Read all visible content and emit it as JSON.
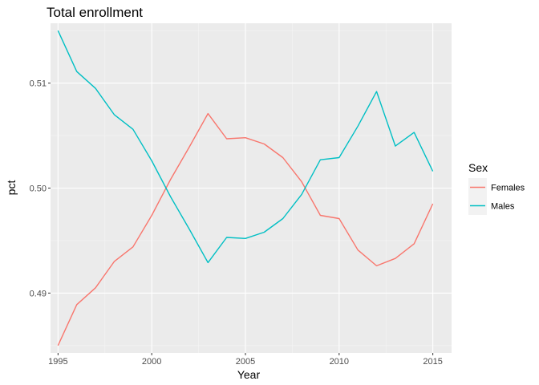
{
  "chart_data": {
    "type": "line",
    "title": "Total enrollment",
    "xlabel": "Year",
    "ylabel": "pct",
    "xlim": [
      1994.6,
      2016.0
    ],
    "ylim": [
      0.4843,
      0.5157
    ],
    "x_ticks": [
      1995,
      2000,
      2005,
      2010,
      2015
    ],
    "x_tick_labels": [
      "1995",
      "2000",
      "2005",
      "2010",
      "2015"
    ],
    "y_ticks": [
      0.49,
      0.5,
      0.51
    ],
    "y_tick_labels": [
      "0.49",
      "0.50",
      "0.51"
    ],
    "grid": true,
    "legend_position": "right",
    "legend_title": "Sex",
    "x": [
      1995,
      1996,
      1997,
      1998,
      1999,
      2000,
      2001,
      2002,
      2003,
      2004,
      2005,
      2006,
      2007,
      2008,
      2009,
      2010,
      2011,
      2012,
      2013,
      2014,
      2015
    ],
    "series": [
      {
        "name": "Females",
        "color": "#F8766D",
        "values": [
          0.485,
          0.4889,
          0.4905,
          0.493,
          0.4944,
          0.4974,
          0.5008,
          0.5039,
          0.5071,
          0.5047,
          0.5048,
          0.5042,
          0.5029,
          0.5006,
          0.4974,
          0.4971,
          0.4941,
          0.4926,
          0.4933,
          0.4947,
          0.4985
        ]
      },
      {
        "name": "Males",
        "color": "#00BFC4",
        "values": [
          0.515,
          0.5111,
          0.5095,
          0.507,
          0.5056,
          0.5026,
          0.4992,
          0.4961,
          0.4929,
          0.4953,
          0.4952,
          0.4958,
          0.4971,
          0.4994,
          0.5027,
          0.5029,
          0.5059,
          0.5092,
          0.504,
          0.5053,
          0.5016
        ]
      }
    ]
  }
}
